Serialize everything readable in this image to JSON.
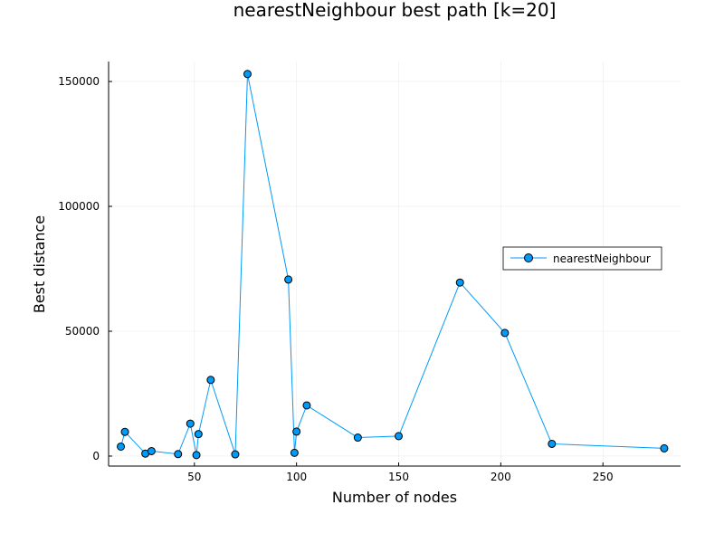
{
  "chart_data": {
    "type": "line",
    "title": "nearestNeighbour best path [k=20]",
    "xlabel": "Number of nodes",
    "ylabel": "Best distance",
    "xlim": [
      8,
      288
    ],
    "ylim": [
      -4000,
      158000
    ],
    "xticks": [
      50,
      100,
      150,
      200,
      250
    ],
    "yticks": [
      0,
      50000,
      100000,
      150000
    ],
    "xtick_labels": [
      "50",
      "100",
      "150",
      "200",
      "250"
    ],
    "ytick_labels": [
      "0",
      "50000",
      "100000",
      "150000"
    ],
    "grid": true,
    "legend_position": "right",
    "series": [
      {
        "name": "nearestNeighbour",
        "color": "#009af9",
        "marker": "circle",
        "points": [
          [
            14,
            3800
          ],
          [
            16,
            9700
          ],
          [
            26,
            1000
          ],
          [
            29,
            2000
          ],
          [
            42,
            800
          ],
          [
            48,
            13000
          ],
          [
            51,
            400
          ],
          [
            52,
            8800
          ],
          [
            58,
            30500
          ],
          [
            70,
            700
          ],
          [
            76,
            153000
          ],
          [
            96,
            70700
          ],
          [
            99,
            1300
          ],
          [
            100,
            9800
          ],
          [
            105,
            20300
          ],
          [
            130,
            7400
          ],
          [
            150,
            8000
          ],
          [
            180,
            69500
          ],
          [
            202,
            49300
          ],
          [
            225,
            4900
          ],
          [
            280,
            3100
          ]
        ]
      }
    ]
  }
}
